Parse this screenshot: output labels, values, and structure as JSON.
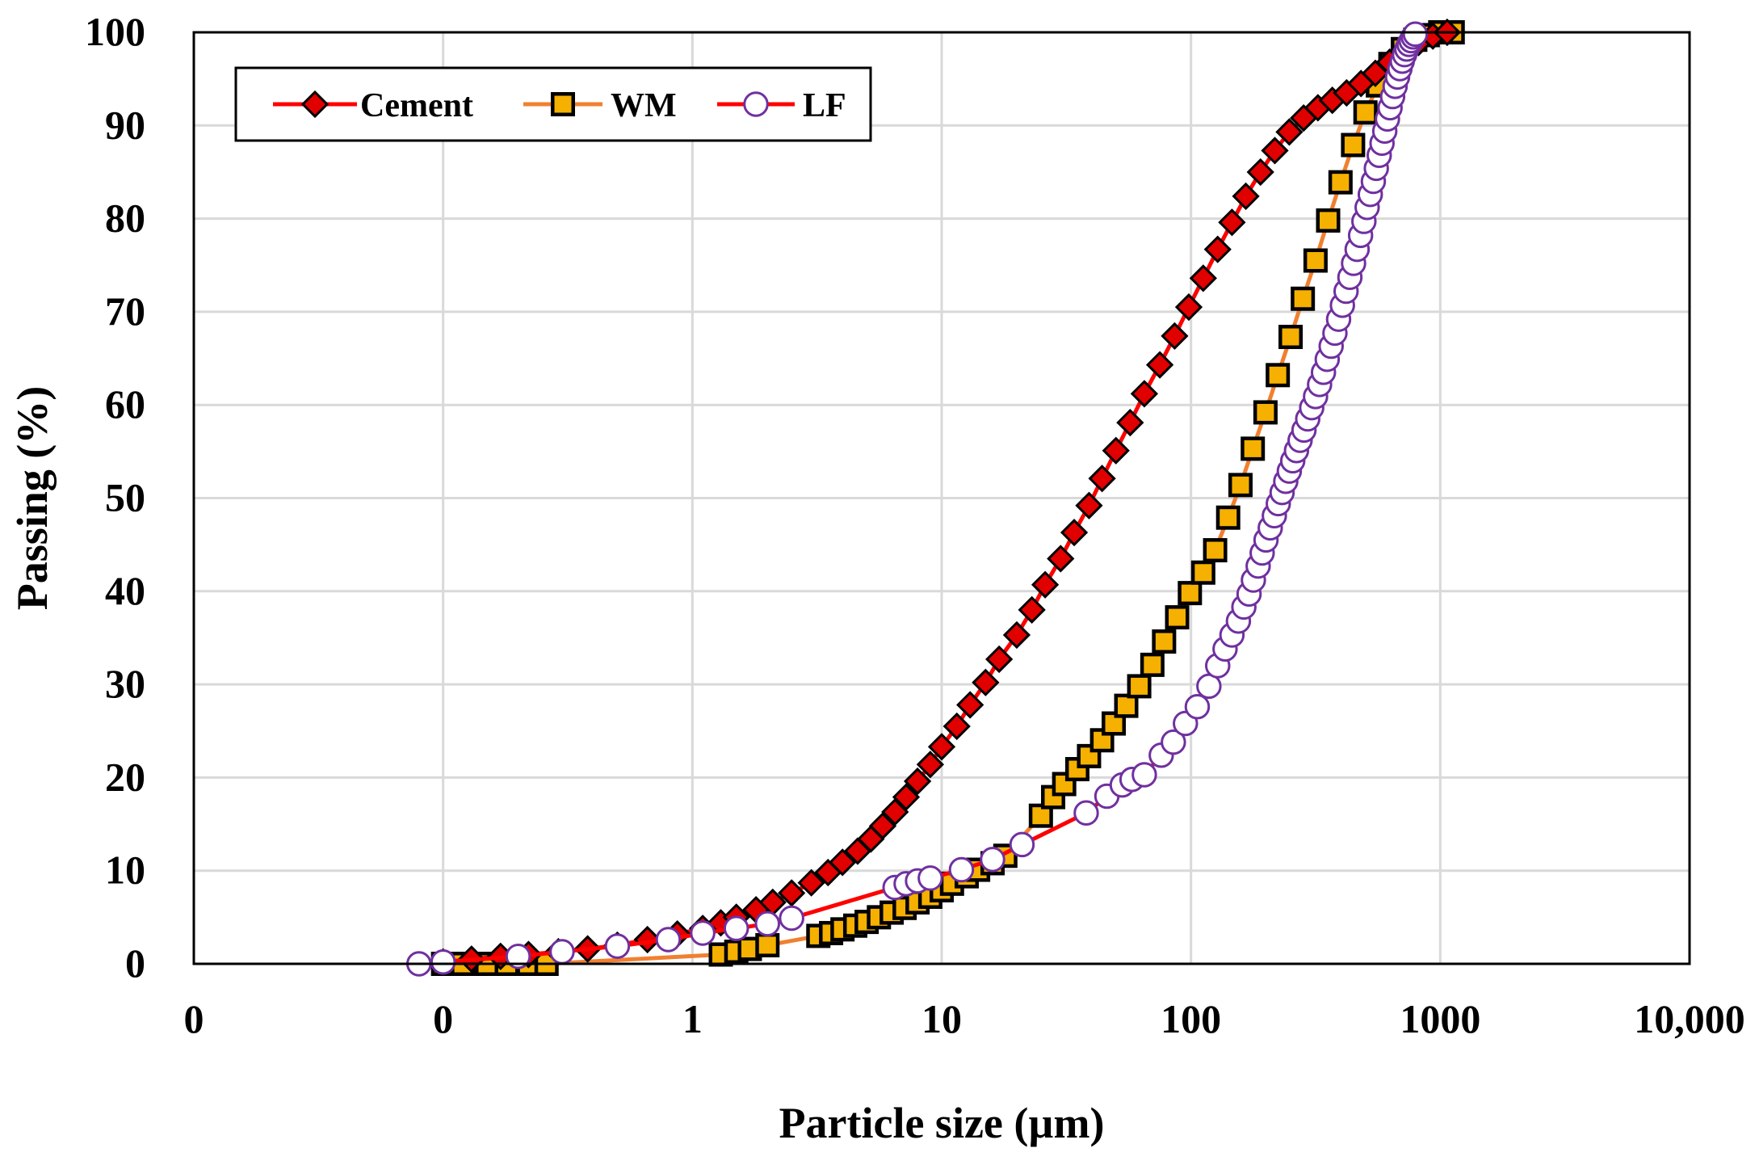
{
  "chart_data": {
    "type": "line",
    "title": "",
    "xlabel": "Particle size (µm)",
    "ylabel": "Passing (%)",
    "xscale": "log",
    "x_ticks": [
      0.01,
      0.1,
      1,
      10,
      100,
      1000,
      10000
    ],
    "x_tick_labels": [
      "0",
      "0",
      "1",
      "10",
      "100",
      "1000",
      "10,000"
    ],
    "y_ticks": [
      0,
      10,
      20,
      30,
      40,
      50,
      60,
      70,
      80,
      90,
      100
    ],
    "y_tick_labels": [
      "0",
      "10",
      "20",
      "30",
      "40",
      "50",
      "60",
      "70",
      "80",
      "90",
      "100"
    ],
    "xlim": [
      0.01,
      10000
    ],
    "ylim": [
      0,
      100
    ],
    "grid": true,
    "legend_position": "top-left",
    "series": [
      {
        "name": "Cement",
        "marker": "diamond",
        "line_color": "#ff0000",
        "marker_fill": "#e00000",
        "marker_edge": "#000000",
        "x": [
          0.1,
          0.13,
          0.17,
          0.22,
          0.29,
          0.38,
          0.5,
          0.66,
          0.87,
          1.1,
          1.3,
          1.5,
          1.8,
          2.1,
          2.5,
          3.0,
          3.5,
          4.0,
          4.6,
          5.2,
          5.8,
          6.5,
          7.2,
          8.0,
          9.0,
          10,
          11.5,
          13,
          15,
          17,
          20,
          23,
          26,
          30,
          34,
          39,
          44,
          50,
          57,
          65,
          75,
          86,
          98,
          112,
          128,
          146,
          166,
          190,
          217,
          248,
          283,
          323,
          369,
          421,
          481,
          549,
          627,
          716,
          818,
          934,
          1066
        ],
        "y": [
          0.2,
          0.5,
          0.8,
          1.0,
          1.3,
          1.6,
          2.0,
          2.6,
          3.2,
          3.8,
          4.4,
          5.0,
          5.8,
          6.6,
          7.6,
          8.7,
          9.8,
          10.9,
          12.1,
          13.4,
          14.8,
          16.3,
          17.9,
          19.6,
          21.4,
          23.3,
          25.5,
          27.8,
          30.2,
          32.7,
          35.3,
          38.0,
          40.7,
          43.5,
          46.3,
          49.2,
          52.1,
          55.1,
          58.1,
          61.2,
          64.3,
          67.4,
          70.5,
          73.6,
          76.7,
          79.6,
          82.4,
          85.0,
          87.3,
          89.3,
          90.8,
          91.9,
          92.7,
          93.5,
          94.5,
          95.6,
          96.8,
          97.9,
          98.9,
          99.6,
          100.0
        ]
      },
      {
        "name": "WM",
        "marker": "square",
        "line_color": "#f08030",
        "marker_fill": "#f5b000",
        "marker_edge": "#000000",
        "x": [
          0.1,
          0.12,
          0.15,
          0.18,
          0.22,
          0.26,
          1.3,
          1.5,
          1.7,
          2.0,
          3.2,
          3.6,
          4.0,
          4.5,
          5.0,
          5.6,
          6.3,
          7.1,
          8.0,
          9.0,
          10,
          11,
          12.6,
          14,
          16,
          18,
          25,
          28,
          31,
          35,
          39,
          44,
          49,
          55,
          62,
          70,
          78,
          88,
          99,
          112,
          125,
          141,
          158,
          177,
          199,
          223,
          251,
          281,
          316,
          355,
          398,
          447,
          501,
          562,
          631,
          708,
          794,
          891,
          1000,
          1122
        ],
        "y": [
          0.0,
          0.0,
          0.0,
          0.0,
          0.0,
          0.0,
          1.0,
          1.3,
          1.6,
          2.0,
          3.0,
          3.3,
          3.7,
          4.1,
          4.5,
          5.0,
          5.5,
          6.0,
          6.6,
          7.2,
          7.9,
          8.6,
          9.4,
          10.1,
          10.8,
          11.6,
          15.9,
          17.9,
          19.3,
          20.9,
          22.3,
          24.0,
          25.8,
          27.7,
          29.8,
          32.1,
          34.6,
          37.2,
          39.8,
          42.0,
          44.4,
          47.9,
          51.4,
          55.3,
          59.2,
          63.2,
          67.3,
          71.4,
          75.5,
          79.8,
          83.9,
          87.9,
          91.4,
          94.3,
          96.6,
          98.2,
          99.2,
          99.7,
          100.0,
          100.0
        ]
      },
      {
        "name": "LF",
        "marker": "circle",
        "line_color": "#ff0000",
        "marker_fill": "#ffffff",
        "marker_edge": "#7030a0",
        "x": [
          0.08,
          0.1,
          0.2,
          0.3,
          0.5,
          0.8,
          1.1,
          1.5,
          2.0,
          2.5,
          6.5,
          7.2,
          8.0,
          9.0,
          12,
          16,
          21,
          38,
          46,
          53,
          58,
          65,
          76,
          85,
          95,
          106,
          118,
          128,
          137,
          146,
          155,
          163,
          171,
          178,
          186,
          193,
          200,
          208,
          216,
          224,
          232,
          240,
          248,
          256,
          265,
          274,
          284,
          294,
          305,
          316,
          328,
          340,
          352,
          365,
          378,
          391,
          405,
          419,
          434,
          449,
          464,
          479,
          494,
          509,
          524,
          539,
          554,
          569,
          584,
          599,
          614,
          629,
          644,
          659,
          674,
          689,
          704,
          719,
          734,
          749,
          764,
          779,
          794
        ],
        "y": [
          0.0,
          0.2,
          0.8,
          1.3,
          1.9,
          2.6,
          3.3,
          3.8,
          4.3,
          4.9,
          8.2,
          8.6,
          8.9,
          9.2,
          10.1,
          11.2,
          12.8,
          16.2,
          18.0,
          19.2,
          19.8,
          20.3,
          22.4,
          23.8,
          25.8,
          27.6,
          29.8,
          32.0,
          33.8,
          35.3,
          36.8,
          38.3,
          39.7,
          41.2,
          42.7,
          44.1,
          45.5,
          46.8,
          48.1,
          49.4,
          50.6,
          51.8,
          52.9,
          54.0,
          55.1,
          56.2,
          57.3,
          58.5,
          59.7,
          60.9,
          62.2,
          63.5,
          64.9,
          66.3,
          67.7,
          69.2,
          70.7,
          72.2,
          73.7,
          75.2,
          76.7,
          78.2,
          79.7,
          81.2,
          82.6,
          84.0,
          85.4,
          86.8,
          88.1,
          89.4,
          90.7,
          91.9,
          93.1,
          94.2,
          95.2,
          96.1,
          96.9,
          97.6,
          98.2,
          98.7,
          99.1,
          99.5,
          99.8
        ]
      }
    ]
  }
}
